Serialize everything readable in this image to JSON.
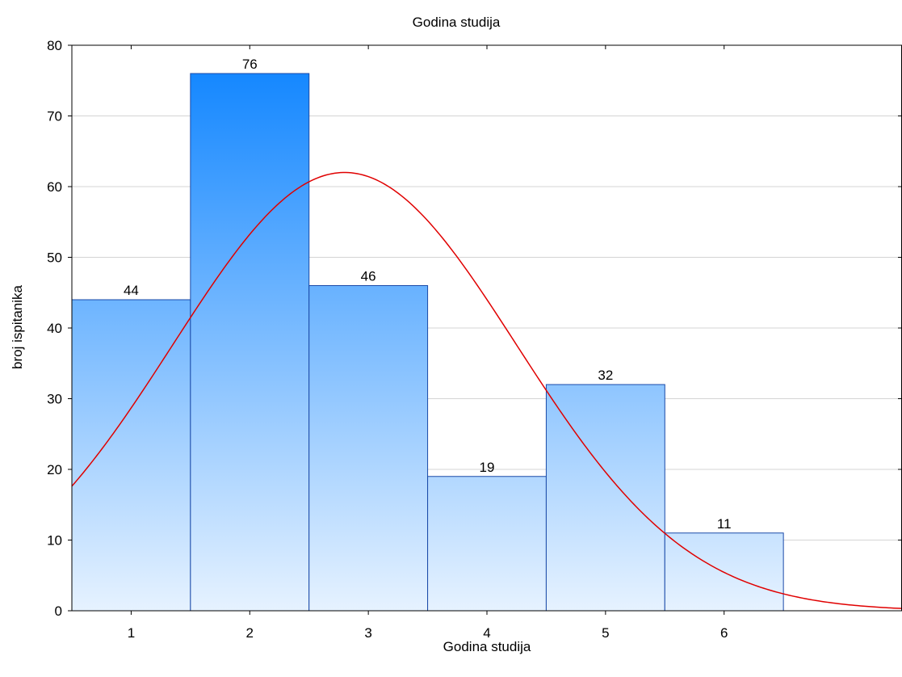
{
  "chart_data": {
    "type": "bar",
    "title": "Godina studija",
    "xlabel": "Godina studija",
    "ylabel": "broj ispitanika",
    "categories": [
      "1",
      "2",
      "3",
      "4",
      "5",
      "6"
    ],
    "values": [
      44,
      76,
      46,
      19,
      32,
      11
    ],
    "data_labels": [
      "44",
      "76",
      "46",
      "19",
      "32",
      "11"
    ],
    "ylim": [
      0,
      80
    ],
    "xlim": [
      0.5,
      7.5
    ],
    "yticks": [
      "0",
      "10",
      "20",
      "30",
      "40",
      "50",
      "60",
      "70",
      "80"
    ],
    "grid": true,
    "bar_color_top": "#0a82ff",
    "bar_color_bottom": "#e6f2ff",
    "bar_border": "#1a4aa8",
    "curve_color": "#e00000",
    "fitted_curve": {
      "type": "normal",
      "mean": 2.8,
      "sd": 1.45,
      "peak": 62
    }
  }
}
